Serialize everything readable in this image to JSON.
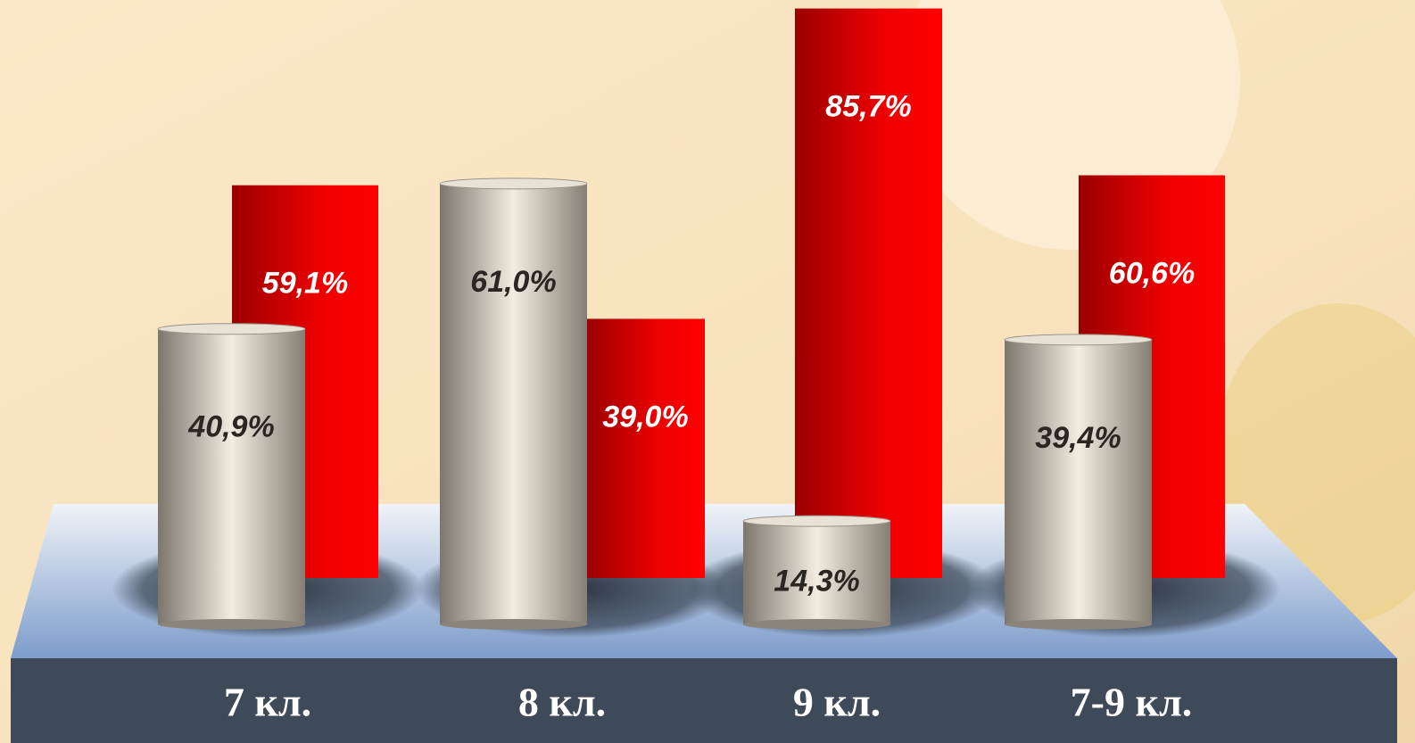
{
  "chart_data": {
    "type": "bar",
    "categories": [
      "7 кл.",
      "8 кл.",
      "9 кл.",
      "7-9 кл."
    ],
    "series": [
      {
        "color": "#b8b1a6",
        "values": [
          40.9,
          61.0,
          14.3,
          39.4
        ],
        "value_labels": [
          "40,9%",
          "61,0%",
          "14,3%",
          "39,4%"
        ]
      },
      {
        "color": "#ff0000",
        "values": [
          59.1,
          39.0,
          85.7,
          60.6
        ],
        "value_labels": [
          "59,1%",
          "39,0%",
          "85,7%",
          "60,6%"
        ]
      }
    ]
  }
}
